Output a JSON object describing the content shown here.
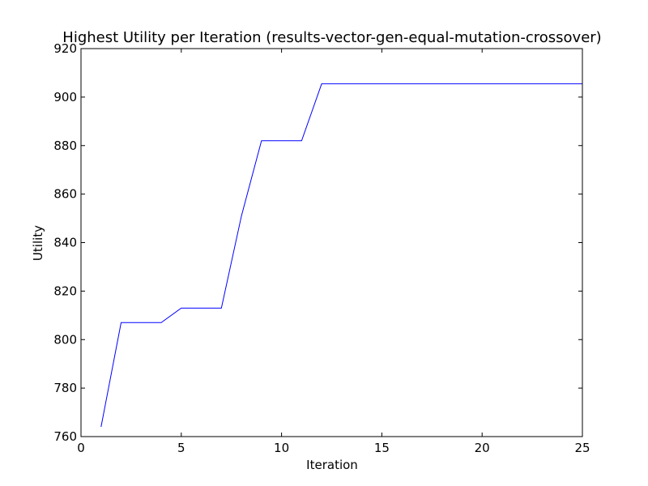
{
  "colors": {
    "line": "#0000ff",
    "axes": "#000000",
    "background": "#ffffff"
  },
  "chart_data": {
    "type": "line",
    "title": "Highest Utility per Iteration (results-vector-gen-equal-mutation-crossover)",
    "xlabel": "Iteration",
    "ylabel": "Utility",
    "xlim": [
      0,
      25
    ],
    "ylim": [
      760,
      920
    ],
    "xticks": [
      0,
      5,
      10,
      15,
      20,
      25
    ],
    "yticks": [
      760,
      780,
      800,
      820,
      840,
      860,
      880,
      900,
      920
    ],
    "grid": false,
    "legend": "none",
    "series": [
      {
        "x": [
          1,
          2,
          3,
          4,
          5,
          6,
          7,
          8,
          9,
          10,
          11,
          12,
          13,
          14,
          15,
          16,
          17,
          18,
          19,
          20,
          21,
          22,
          23,
          24,
          25
        ],
        "y": [
          764,
          807,
          807,
          807,
          813,
          813,
          813,
          851,
          882,
          882,
          882,
          905.5,
          905.5,
          905.5,
          905.5,
          905.5,
          905.5,
          905.5,
          905.5,
          905.5,
          905.5,
          905.5,
          905.5,
          905.5,
          905.5
        ]
      }
    ]
  }
}
